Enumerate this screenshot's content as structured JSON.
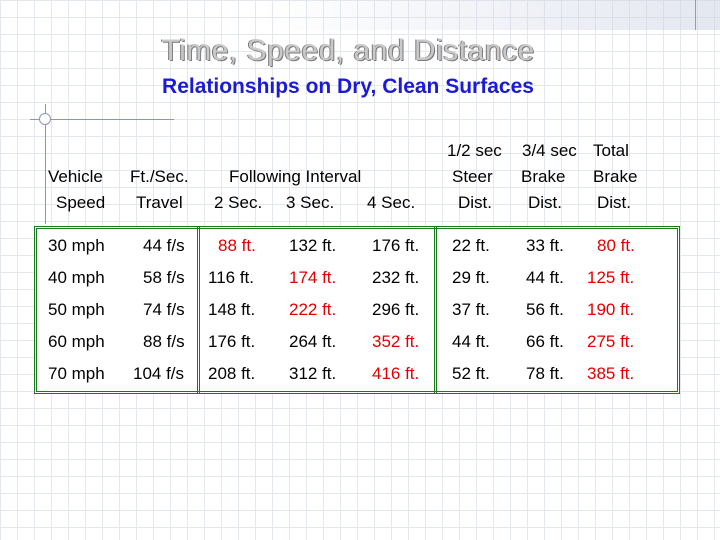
{
  "title": "Time, Speed, and Distance",
  "subtitle": "Relationships on Dry, Clean Surfaces",
  "headers": {
    "vehicle": "Vehicle",
    "speed": "Speed",
    "ftsec": "Ft./Sec.",
    "travel": "Travel",
    "following_interval": "Following Interval",
    "sec2": "2 Sec.",
    "sec3": "3 Sec.",
    "sec4": "4 Sec.",
    "half_sec": "1/2 sec",
    "steer": "Steer",
    "steer_dist": "Dist.",
    "three_quarter_sec": "3/4 sec",
    "brake": "Brake",
    "brake_dist": "Dist.",
    "total": "Total",
    "total_brake": "Brake",
    "total_dist": "Dist."
  },
  "rows": [
    {
      "speed": "30 mph",
      "fps": "44 f/s",
      "s2": "88 ft.",
      "s3": "132 ft.",
      "s4": "176 ft.",
      "steer": "22 ft.",
      "brake": "33 ft.",
      "total": "80 ft."
    },
    {
      "speed": "40 mph",
      "fps": "58 f/s",
      "s2": "116 ft.",
      "s3": "174 ft.",
      "s4": "232 ft.",
      "steer": "29 ft.",
      "brake": "44 ft.",
      "total": "125 ft."
    },
    {
      "speed": "50 mph",
      "fps": "74 f/s",
      "s2": "148 ft.",
      "s3": "222 ft.",
      "s4": "296 ft.",
      "steer": "37 ft.",
      "brake": "56 ft.",
      "total": "190 ft."
    },
    {
      "speed": "60 mph",
      "fps": "88 f/s",
      "s2": "176 ft.",
      "s3": "264 ft.",
      "s4": "352 ft.",
      "steer": "44 ft.",
      "brake": "66 ft.",
      "total": "275 ft."
    },
    {
      "speed": "70 mph",
      "fps": "104 f/s",
      "s2": "208 ft.",
      "s3": "312 ft.",
      "s4": "416 ft.",
      "steer": "52 ft.",
      "brake": "78 ft.",
      "total": "385 ft."
    }
  ],
  "colors": {
    "title": "#c9c9c9",
    "subtitle": "#1b1bd6",
    "highlight": "#e00000",
    "table_border": "#1a7a1a"
  }
}
